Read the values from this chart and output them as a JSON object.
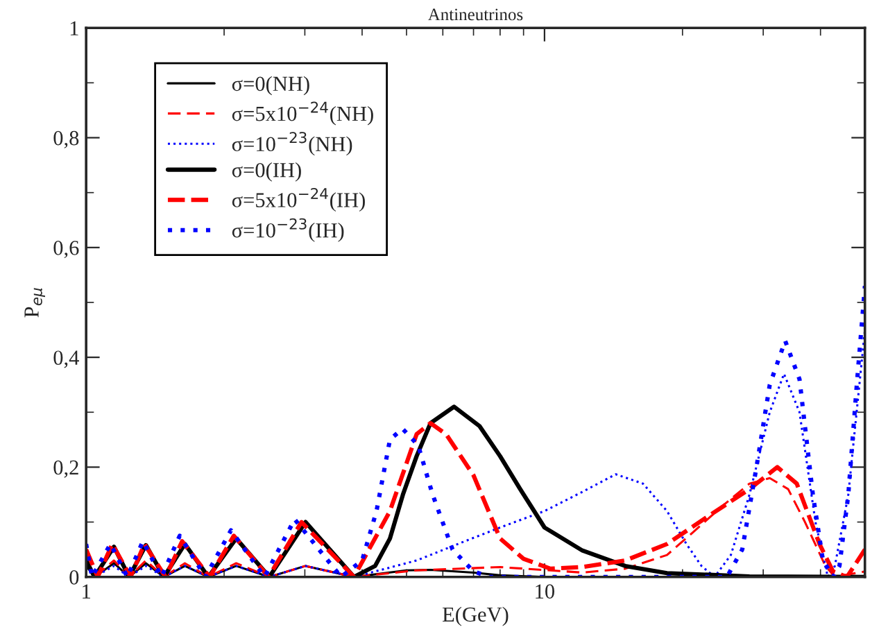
{
  "chart_data": {
    "type": "line",
    "title": "Antineutrinos",
    "xlabel": "E(GeV)",
    "ylabel": "P$_{eμ}$",
    "log": "x",
    "xlim": [
      1,
      50
    ],
    "xticks": [
      1,
      10
    ],
    "ylim": [
      0,
      1
    ],
    "yticks": [
      0,
      {
        "value": 0.2,
        "label": "0,2"
      },
      {
        "value": 0.4,
        "label": "0,4"
      },
      {
        "value": 0.6,
        "label": "0,6"
      },
      {
        "value": 0.8,
        "label": "0,8"
      },
      1
    ],
    "grid": false,
    "legend": "top left",
    "marker": "none",
    "series": [
      {
        "name": "σ=0(NH)",
        "color": "#000000",
        "line_style": "solid",
        "x": [
          1.0,
          1.043,
          1.15,
          1.241,
          1.35,
          1.478,
          1.642,
          1.848,
          2.125,
          2.51,
          3.01,
          3.84,
          5.0,
          5.64,
          7.0,
          8.0,
          10.0,
          50.0
        ],
        "values": [
          0.02,
          0,
          0.025,
          0,
          0.025,
          0,
          0.02,
          0,
          0.02,
          0,
          0.02,
          0,
          0.012,
          0.013,
          0.008,
          0.003,
          0,
          0
        ]
      },
      {
        "name": "σ=5x10$^{−24}$(NH)",
        "color": "#ff0000",
        "line_style": "dashed",
        "x": [
          1.0,
          1.043,
          1.15,
          1.241,
          1.35,
          1.478,
          1.642,
          1.848,
          2.125,
          2.51,
          3.01,
          3.84,
          5.26,
          8.0,
          12.1,
          15.0,
          18.5,
          21.0,
          24.5,
          28.0,
          31.0,
          34.0,
          37.0,
          41.0,
          43.0,
          50.0
        ],
        "values": [
          0.03,
          0,
          0.03,
          0,
          0.03,
          0,
          0.025,
          0,
          0.025,
          0,
          0.02,
          0,
          0.012,
          0.018,
          0.008,
          0.015,
          0.04,
          0.08,
          0.13,
          0.17,
          0.18,
          0.16,
          0.1,
          0.02,
          0,
          0.01
        ]
      },
      {
        "name": "σ=10$^{−23}$(NH)",
        "color": "#0000ff",
        "line_style": "dotted",
        "x": [
          1.0,
          1.043,
          1.15,
          1.241,
          1.35,
          1.478,
          1.642,
          1.848,
          2.125,
          2.51,
          3.01,
          3.84,
          4.27,
          5.26,
          6.7,
          8.0,
          10.0,
          12.1,
          14.3,
          16.4,
          18.5,
          20.4,
          22.0,
          23.5,
          25.5,
          28.0,
          31.0,
          33.3,
          36.0,
          39.0,
          41.5,
          43.0,
          46.0,
          50.0
        ],
        "values": [
          0.03,
          0,
          0.02,
          0,
          0.02,
          0,
          0.02,
          0,
          0.02,
          0,
          0.02,
          0,
          0.01,
          0.03,
          0.065,
          0.09,
          0.12,
          0.155,
          0.187,
          0.17,
          0.12,
          0.06,
          0.02,
          0,
          0.04,
          0.15,
          0.3,
          0.37,
          0.3,
          0.1,
          0,
          0.02,
          0.15,
          0.45
        ]
      },
      {
        "name": "σ=0(IH)",
        "color": "#000000",
        "line_style": "solid",
        "x": [
          1.0,
          1.043,
          1.15,
          1.241,
          1.35,
          1.478,
          1.642,
          1.848,
          2.125,
          2.51,
          3.01,
          3.84,
          4.27,
          4.6,
          4.91,
          5.26,
          5.64,
          6.35,
          7.21,
          8.0,
          8.85,
          10.0,
          12.1,
          15.0,
          18.5,
          28.0,
          50.0
        ],
        "values": [
          0.03,
          0,
          0.055,
          0,
          0.058,
          0,
          0.06,
          0,
          0.07,
          0,
          0.1,
          0,
          0.02,
          0.07,
          0.15,
          0.22,
          0.28,
          0.31,
          0.275,
          0.22,
          0.16,
          0.09,
          0.048,
          0.02,
          0.007,
          0.001,
          0
        ]
      },
      {
        "name": "σ=5x10$^{−24}$(IH)",
        "color": "#ff0000",
        "line_style": "dashed",
        "x": [
          1.0,
          1.06,
          1.14,
          1.25,
          1.34,
          1.49,
          1.62,
          1.86,
          2.1,
          2.5,
          2.95,
          3.84,
          4.6,
          5.26,
          5.64,
          6.1,
          7.0,
          8.0,
          9.0,
          10.3,
          12.1,
          15.0,
          18.5,
          22.7,
          28.0,
          32.2,
          35.5,
          39.8,
          42.6,
          45.7,
          50.0
        ],
        "values": [
          0.05,
          0,
          0.06,
          0,
          0.06,
          0,
          0.065,
          0,
          0.075,
          0,
          0.1,
          0,
          0.12,
          0.26,
          0.28,
          0.26,
          0.185,
          0.07,
          0.033,
          0.015,
          0.018,
          0.03,
          0.06,
          0.11,
          0.16,
          0.2,
          0.17,
          0.06,
          0.01,
          0,
          0.05
        ]
      },
      {
        "name": "σ=10$^{−23}$(IH)",
        "color": "#0000ff",
        "line_style": "dotted",
        "x": [
          1.0,
          1.03,
          1.13,
          1.23,
          1.33,
          1.46,
          1.6,
          1.82,
          2.07,
          2.45,
          2.85,
          3.6,
          4.0,
          4.3,
          4.6,
          4.9,
          5.3,
          5.7,
          6.3,
          7.0,
          7.6,
          25.0,
          27.0,
          29.0,
          31.0,
          33.5,
          36.0,
          38.5,
          40.5,
          42.6,
          44.0,
          46.0,
          48.0,
          50.0
        ],
        "values": [
          0.06,
          0,
          0.06,
          0,
          0.065,
          0,
          0.075,
          0,
          0.085,
          0,
          0.105,
          0,
          0.03,
          0.12,
          0.25,
          0.27,
          0.24,
          0.15,
          0.05,
          0.01,
          0,
          0,
          0.05,
          0.2,
          0.35,
          0.43,
          0.36,
          0.15,
          0.03,
          0,
          0.02,
          0.15,
          0.35,
          0.53
        ]
      }
    ]
  }
}
